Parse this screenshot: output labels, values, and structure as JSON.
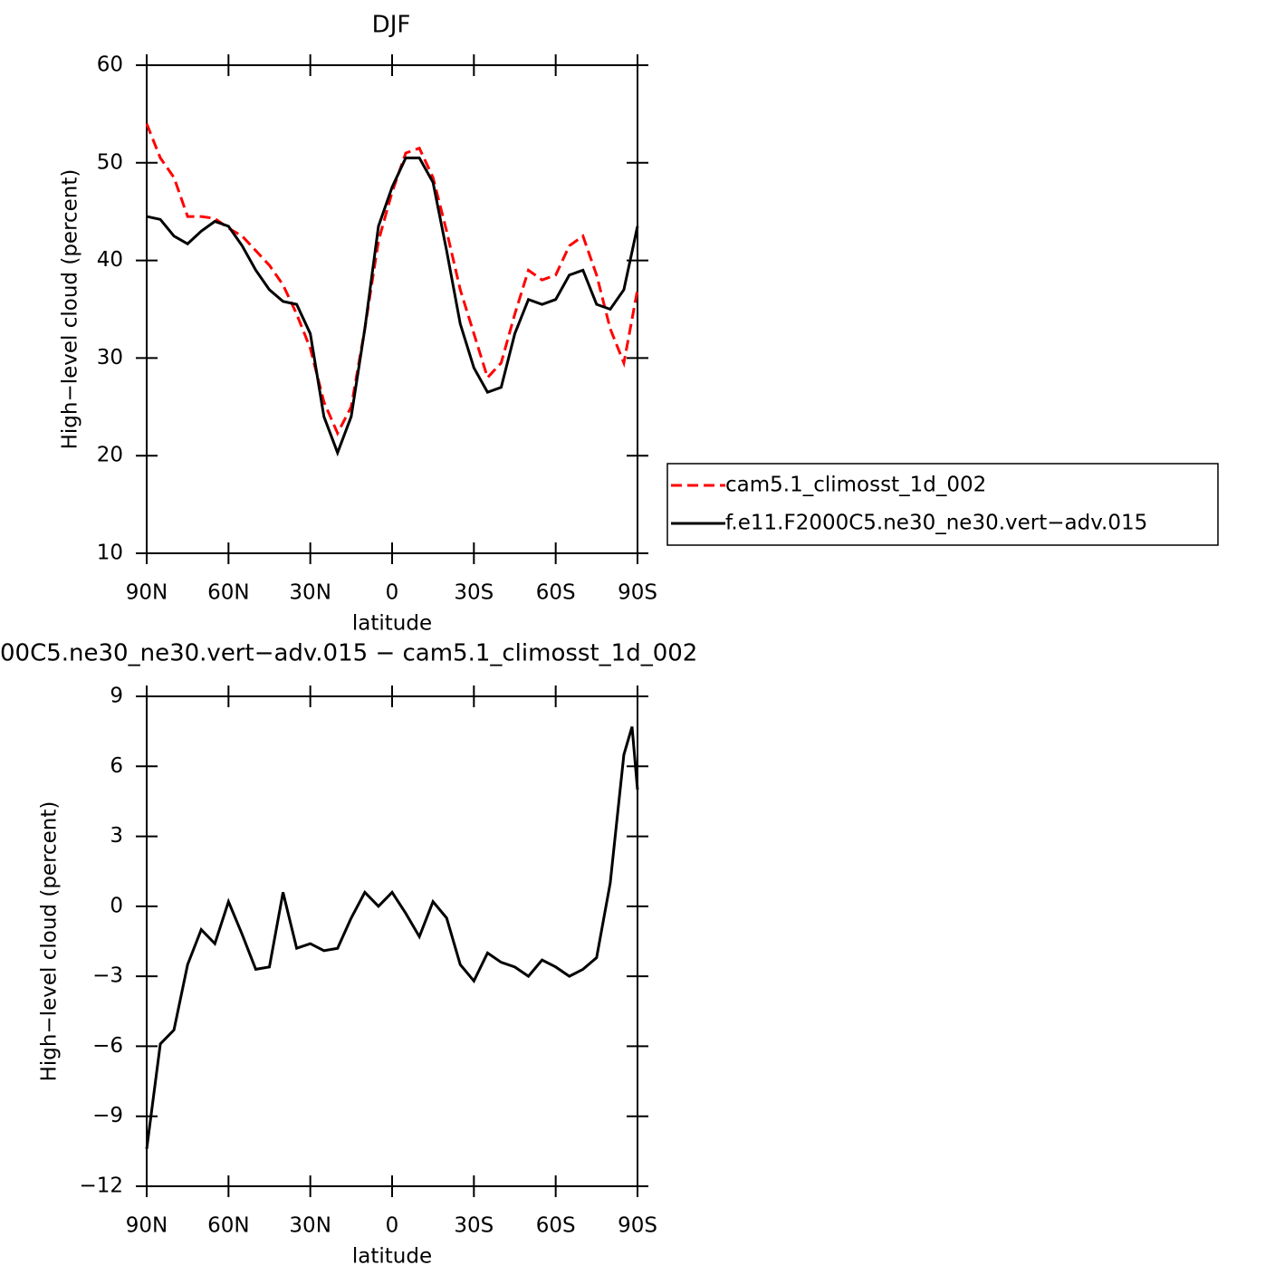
{
  "chart_data": [
    {
      "type": "line",
      "title": "DJF",
      "xlabel": "latitude",
      "ylabel": "High−level cloud (percent)",
      "x": [
        90,
        85,
        80,
        75,
        70,
        65,
        60,
        55,
        50,
        45,
        40,
        35,
        30,
        25,
        20,
        15,
        10,
        5,
        0,
        -5,
        -10,
        -15,
        -20,
        -25,
        -30,
        -35,
        -40,
        -45,
        -50,
        -55,
        -60,
        -65,
        -70,
        -75,
        -80,
        -85,
        -90
      ],
      "series": [
        {
          "name": "cam5.1_climosst_1d_002",
          "color": "#ff0000",
          "style": "dashed",
          "values": [
            54,
            50.5,
            48.5,
            44.5,
            44.5,
            44.3,
            43.3,
            42.5,
            41,
            39.5,
            37.5,
            34.5,
            31,
            25.5,
            22.3,
            25,
            33,
            42,
            47,
            51,
            51.5,
            48.5,
            43,
            37,
            32.5,
            28,
            29.5,
            34.5,
            39,
            38,
            38.5,
            41.5,
            42.5,
            38.5,
            33,
            29.5,
            37
          ]
        },
        {
          "name": "f.e11.F2000C5.ne30_ne30.vert−adv.015",
          "color": "#000000",
          "style": "solid",
          "values": [
            44.5,
            44.2,
            42.5,
            41.7,
            43,
            44,
            43.5,
            41.5,
            39,
            37,
            35.8,
            35.5,
            32.5,
            24,
            20.3,
            24,
            33,
            43.5,
            47.5,
            50.5,
            50.5,
            48,
            41,
            33.5,
            29,
            26.5,
            27,
            32.5,
            36,
            35.5,
            36,
            38.5,
            39,
            35.5,
            35,
            37,
            43.5
          ]
        }
      ],
      "legend": "right",
      "xlim": [
        90,
        -90
      ],
      "xticks": [
        {
          "value": 90,
          "label": "90N"
        },
        {
          "value": 60,
          "label": "60N"
        },
        {
          "value": 30,
          "label": "30N"
        },
        0,
        {
          "value": -30,
          "label": "30S"
        },
        {
          "value": -60,
          "label": "60S"
        },
        {
          "value": -90,
          "label": "90S"
        }
      ],
      "ylim": [
        10,
        60
      ],
      "yticks": [
        10,
        20,
        30,
        40,
        50,
        60
      ]
    },
    {
      "type": "line",
      "title": "00C5.ne30_ne30.vert−adv.015 − cam5.1_climosst_1d_002",
      "xlabel": "latitude",
      "ylabel": "High−level cloud (percent)",
      "x": [
        90,
        85,
        80,
        75,
        70,
        65,
        60,
        55,
        50,
        45,
        40,
        35,
        30,
        25,
        20,
        15,
        10,
        5,
        0,
        -5,
        -10,
        -15,
        -20,
        -25,
        -30,
        -35,
        -40,
        -45,
        -50,
        -55,
        -60,
        -65,
        -70,
        -75,
        -80,
        -85,
        -88,
        -90
      ],
      "series": [
        {
          "color": "#000000",
          "style": "solid",
          "values": [
            -10.4,
            -5.9,
            -5.3,
            -2.5,
            -1.0,
            -1.6,
            0.2,
            -1.2,
            -2.7,
            -2.6,
            0.6,
            -1.8,
            -1.6,
            -1.9,
            -1.8,
            -0.5,
            0.6,
            0,
            0.6,
            -0.3,
            -1.3,
            0.2,
            -0.5,
            -2.5,
            -3.2,
            -2.0,
            -2.4,
            -2.6,
            -3.0,
            -2.3,
            -2.6,
            -3.0,
            -2.7,
            -2.2,
            1.0,
            6.5,
            7.7,
            5.0
          ]
        }
      ],
      "xlim": [
        90,
        -90
      ],
      "xticks": [
        {
          "value": 90,
          "label": "90N"
        },
        {
          "value": 60,
          "label": "60N"
        },
        {
          "value": 30,
          "label": "30N"
        },
        0,
        {
          "value": -30,
          "label": "30S"
        },
        {
          "value": -60,
          "label": "60S"
        },
        {
          "value": -90,
          "label": "90S"
        }
      ],
      "ylim": [
        -12,
        9
      ],
      "yticks": [
        {
          "value": -12,
          "label": "−12"
        },
        {
          "value": -9,
          "label": "−9"
        },
        {
          "value": -6,
          "label": "−6"
        },
        {
          "value": -3,
          "label": "−3"
        },
        0,
        3,
        6,
        9
      ]
    }
  ]
}
